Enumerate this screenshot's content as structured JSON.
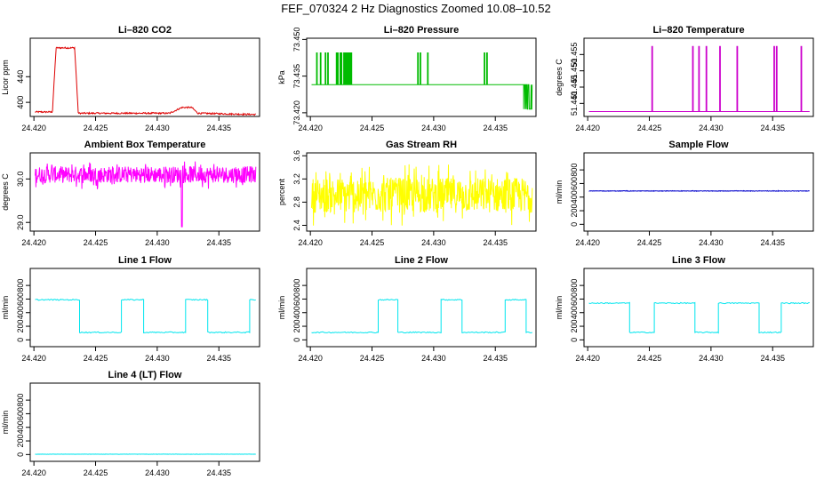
{
  "title": "FEF_070324  2 Hz Diagnostics Zoomed 10.08–10.52",
  "chart_data": [
    {
      "id": "co2",
      "type": "line",
      "title": "Li–820 CO2",
      "ylabel": "Licor ppm",
      "color": "#dd0000",
      "xlim": [
        24.4197,
        24.4383
      ],
      "ylim": [
        378,
        500
      ],
      "xticks": [
        "24.420",
        "24.425",
        "24.430",
        "24.435"
      ],
      "yticks": [
        "400",
        "440"
      ],
      "trace": {
        "kind": "segments",
        "segments": [
          [
            24.42,
            385
          ],
          [
            24.4215,
            385
          ],
          [
            24.4218,
            485
          ],
          [
            24.4233,
            485
          ],
          [
            24.4236,
            383
          ],
          [
            24.431,
            383
          ],
          [
            24.432,
            392
          ],
          [
            24.4328,
            392
          ],
          [
            24.4333,
            383
          ],
          [
            24.438,
            381
          ]
        ],
        "noise": 1.2
      }
    },
    {
      "id": "press",
      "type": "line",
      "title": "Li–820 Pressure",
      "ylabel": "kPa",
      "color": "#00bb00",
      "xlim": [
        24.4197,
        24.4383
      ],
      "ylim": [
        73.4185,
        73.4505
      ],
      "xticks": [
        "24.420",
        "24.425",
        "24.430",
        "24.435"
      ],
      "yticks": [
        "73.420",
        "73.435",
        "73.450"
      ],
      "trace": {
        "kind": "spikes",
        "base": 73.4315,
        "spike": 73.4445,
        "spikes": [
          24.4205,
          24.4208,
          24.4212,
          24.4214,
          24.4221,
          24.4222,
          24.4224,
          24.4225,
          24.4227,
          24.4228,
          24.4229,
          24.423,
          24.4231,
          24.4232,
          24.4233,
          24.4287,
          24.4289,
          24.4295,
          24.4341,
          24.4343
        ],
        "endLow": [
          24.4373,
          24.438,
          73.4215
        ]
      }
    },
    {
      "id": "temp",
      "type": "line",
      "title": "Li–820 Temperature",
      "ylabel": "degrees C",
      "color": "#cc00cc",
      "xlim": [
        24.4197,
        24.4383
      ],
      "ylim": [
        51.436,
        51.46
      ],
      "xticks": [
        "24.420",
        "24.425",
        "24.430",
        "24.435"
      ],
      "yticks": [
        "51.440",
        "51.445",
        "51.450",
        "51.455"
      ],
      "trace": {
        "kind": "spikes",
        "base": 51.4375,
        "spike": 51.4575,
        "spikes": [
          24.4252,
          24.4285,
          24.429,
          24.4296,
          24.4307,
          24.4321,
          24.4351,
          24.4353,
          24.4373
        ]
      }
    },
    {
      "id": "ambient",
      "type": "line",
      "title": "Ambient Box Temperature",
      "ylabel": "degrees C",
      "color": "#ff00ff",
      "xlim": [
        24.4197,
        24.4383
      ],
      "ylim": [
        28.8,
        30.6
      ],
      "xticks": [
        "24.420",
        "24.425",
        "24.430",
        "24.435"
      ],
      "yticks": [
        "29.0",
        "30.0"
      ],
      "trace": {
        "kind": "noise",
        "level": 30.1,
        "amp": 0.24,
        "dips": [
          [
            24.432,
            28.9
          ]
        ]
      }
    },
    {
      "id": "rh",
      "type": "line",
      "title": "Gas Stream RH",
      "ylabel": "percent",
      "color": "#ffff00",
      "xlim": [
        24.4197,
        24.4383
      ],
      "ylim": [
        2.3,
        3.65
      ],
      "xticks": [
        "24.420",
        "24.425",
        "24.430",
        "24.435"
      ],
      "yticks": [
        "2.4",
        "2.8",
        "3.2",
        "3.6"
      ],
      "trace": {
        "kind": "noise",
        "level": 2.92,
        "amp": 0.38
      }
    },
    {
      "id": "sample",
      "type": "line",
      "title": "Sample Flow",
      "ylabel": "ml/min",
      "color": "#0000cc",
      "xlim": [
        24.4197,
        24.4383
      ],
      "ylim": [
        -100,
        1050
      ],
      "xticks": [
        "24.420",
        "24.425",
        "24.430",
        "24.435"
      ],
      "yticks": [
        "0",
        "200",
        "400",
        "600",
        "800"
      ],
      "trace": {
        "kind": "noise",
        "level": 490,
        "amp": 4
      }
    },
    {
      "id": "line1",
      "type": "line",
      "title": "Line 1 Flow",
      "ylabel": "ml/min",
      "color": "#00e5ee",
      "xlim": [
        24.4197,
        24.4383
      ],
      "ylim": [
        -100,
        1050
      ],
      "xticks": [
        "24.420",
        "24.425",
        "24.430",
        "24.435"
      ],
      "yticks": [
        "0",
        "200",
        "400",
        "600",
        "800"
      ],
      "trace": {
        "kind": "square",
        "low": 110,
        "high": 590,
        "startHigh": true,
        "edges": [
          24.4201,
          24.4237,
          24.4271,
          24.4289,
          24.4323,
          24.4341,
          24.4375
        ],
        "amp": 8
      }
    },
    {
      "id": "line2",
      "type": "line",
      "title": "Line 2 Flow",
      "ylabel": "ml/min",
      "color": "#00e5ee",
      "xlim": [
        24.4197,
        24.4383
      ],
      "ylim": [
        -100,
        1050
      ],
      "xticks": [
        "24.420",
        "24.425",
        "24.430",
        "24.435"
      ],
      "yticks": [
        "0",
        "200",
        "400",
        "600",
        "800"
      ],
      "trace": {
        "kind": "square",
        "low": 110,
        "high": 590,
        "startHigh": false,
        "edges": [
          24.4201,
          24.4255,
          24.4271,
          24.4306,
          24.4323,
          24.4358,
          24.4375
        ],
        "amp": 8
      }
    },
    {
      "id": "line3",
      "type": "line",
      "title": "Line 3 Flow",
      "ylabel": "ml/min",
      "color": "#00e5ee",
      "xlim": [
        24.4197,
        24.4383
      ],
      "ylim": [
        -100,
        1050
      ],
      "xticks": [
        "24.420",
        "24.425",
        "24.430",
        "24.435"
      ],
      "yticks": [
        "0",
        "200",
        "400",
        "600",
        "800"
      ],
      "trace": {
        "kind": "square",
        "low": 110,
        "high": 540,
        "startHigh": true,
        "edges": [
          24.4234,
          24.4254,
          24.4287,
          24.4306,
          24.4339,
          24.4357
        ],
        "amp": 8
      }
    },
    {
      "id": "line4",
      "type": "line",
      "title": "Line 4 (LT) Flow",
      "ylabel": "ml/min",
      "color": "#00e5ee",
      "xlim": [
        24.4197,
        24.4383
      ],
      "ylim": [
        -100,
        1050
      ],
      "xticks": [
        "24.420",
        "24.425",
        "24.430",
        "24.435"
      ],
      "yticks": [
        "0",
        "200",
        "400",
        "600",
        "800"
      ],
      "trace": {
        "kind": "noise",
        "level": 5,
        "amp": 2
      }
    }
  ]
}
